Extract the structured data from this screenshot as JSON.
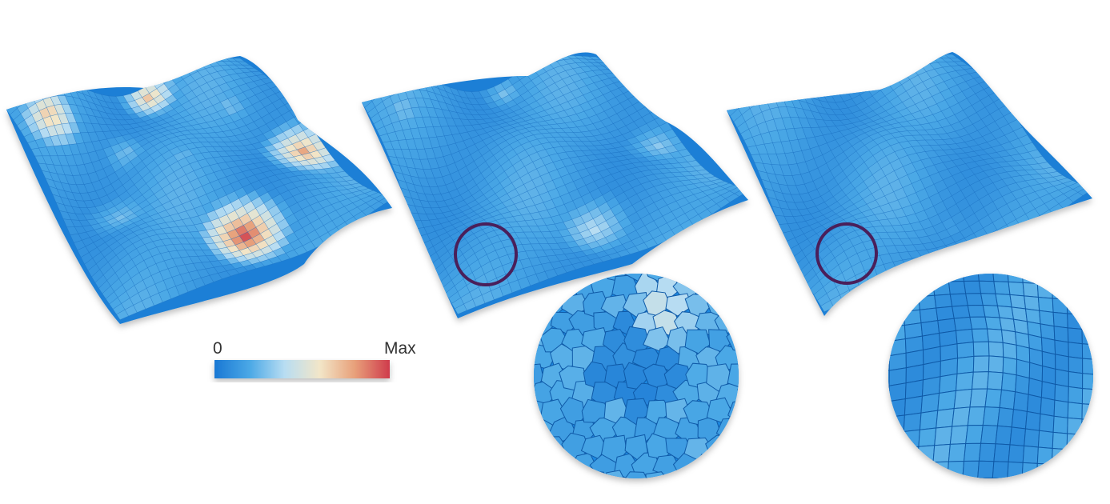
{
  "colorbar": {
    "min_label": "0",
    "max_label": "Max",
    "stops": [
      "#1a78d4",
      "#4aa8e6",
      "#b8ddf2",
      "#f2e6c8",
      "#e8a07a",
      "#cf3b4c"
    ]
  },
  "panels": [
    {
      "id": "left",
      "hotspot_level": 1.0
    },
    {
      "id": "middle",
      "hotspot_level": 0.35
    },
    {
      "id": "right",
      "hotspot_level": 0.12
    }
  ],
  "highlight_color": "#4a1f5a",
  "mesh_color": "#1a6bbd",
  "zoom_insets": [
    {
      "id": "middle-zoom",
      "mesh": "irregular"
    },
    {
      "id": "right-zoom",
      "mesh": "structured"
    }
  ]
}
